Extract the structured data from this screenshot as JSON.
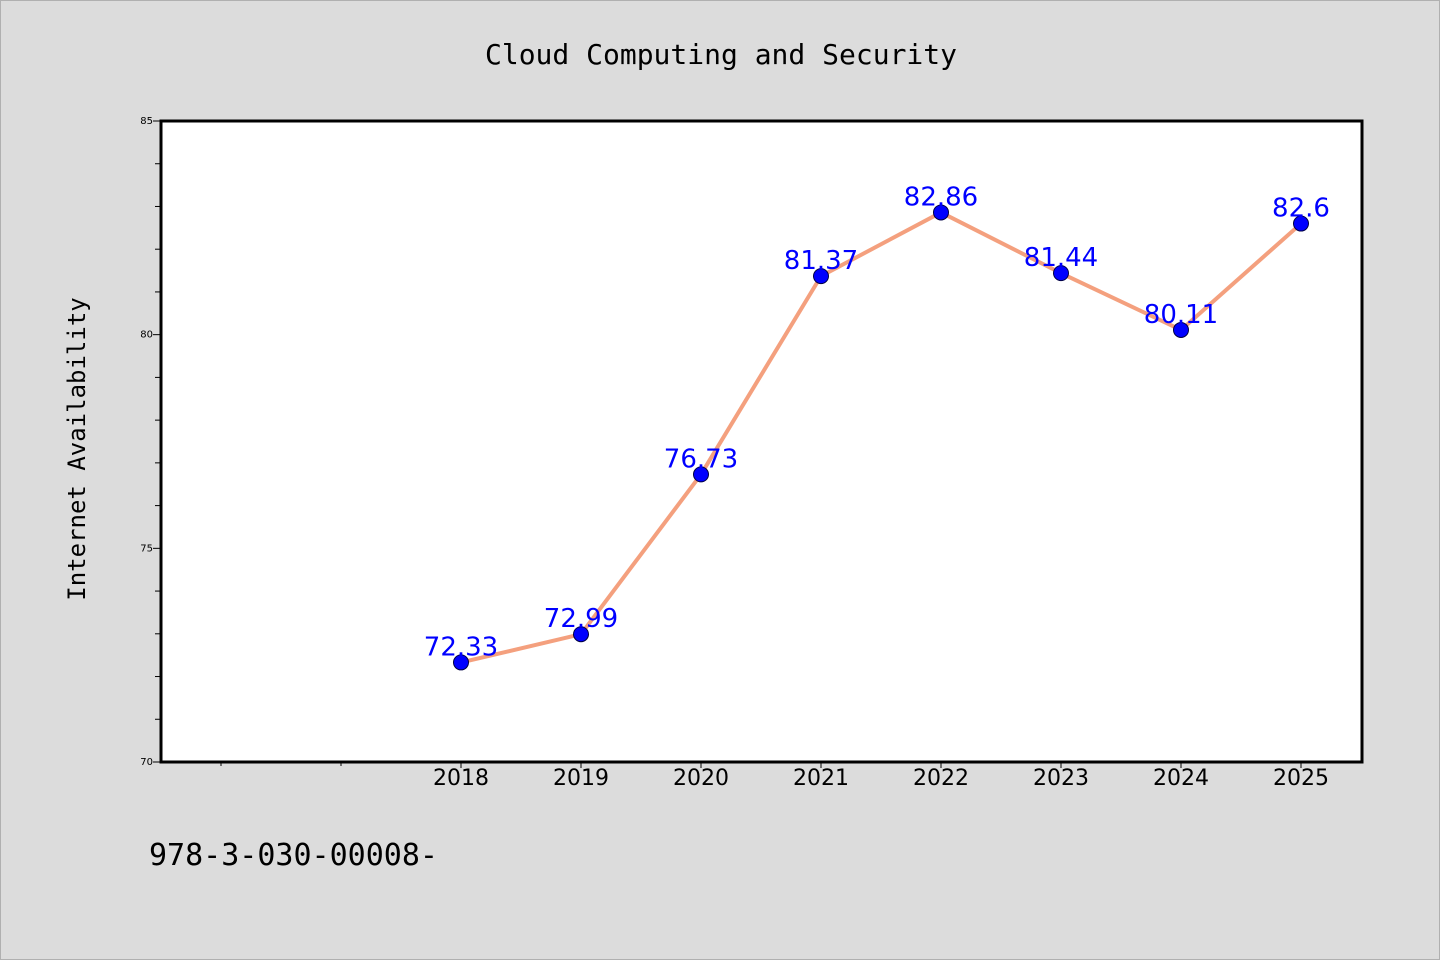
{
  "chart_data": {
    "type": "line",
    "title": "Cloud Computing and Security",
    "xlabel": "",
    "ylabel": "Internet Availability",
    "categories": [
      "2018",
      "2019",
      "2020",
      "2021",
      "2022",
      "2023",
      "2024",
      "2025"
    ],
    "series": [
      {
        "values": [
          72.33,
          72.99,
          76.73,
          81.37,
          82.86,
          81.44,
          80.11,
          82.6
        ],
        "labels": [
          "72.33",
          "72.99",
          "76.73",
          "81.37",
          "82.86",
          "81.44",
          "80.11",
          "82.6"
        ]
      }
    ],
    "ylim": [
      70,
      85
    ],
    "yticks": [
      "70",
      "75",
      "80",
      "85"
    ],
    "grid": false,
    "legend": "none",
    "colors": {
      "line": "#f4a07e",
      "marker": "#0000ff",
      "data_label": "#0000ff",
      "background": "#dcdcdc",
      "plot_area": "#ffffff"
    }
  },
  "footer": {
    "text": "978-3-030-00008-"
  }
}
